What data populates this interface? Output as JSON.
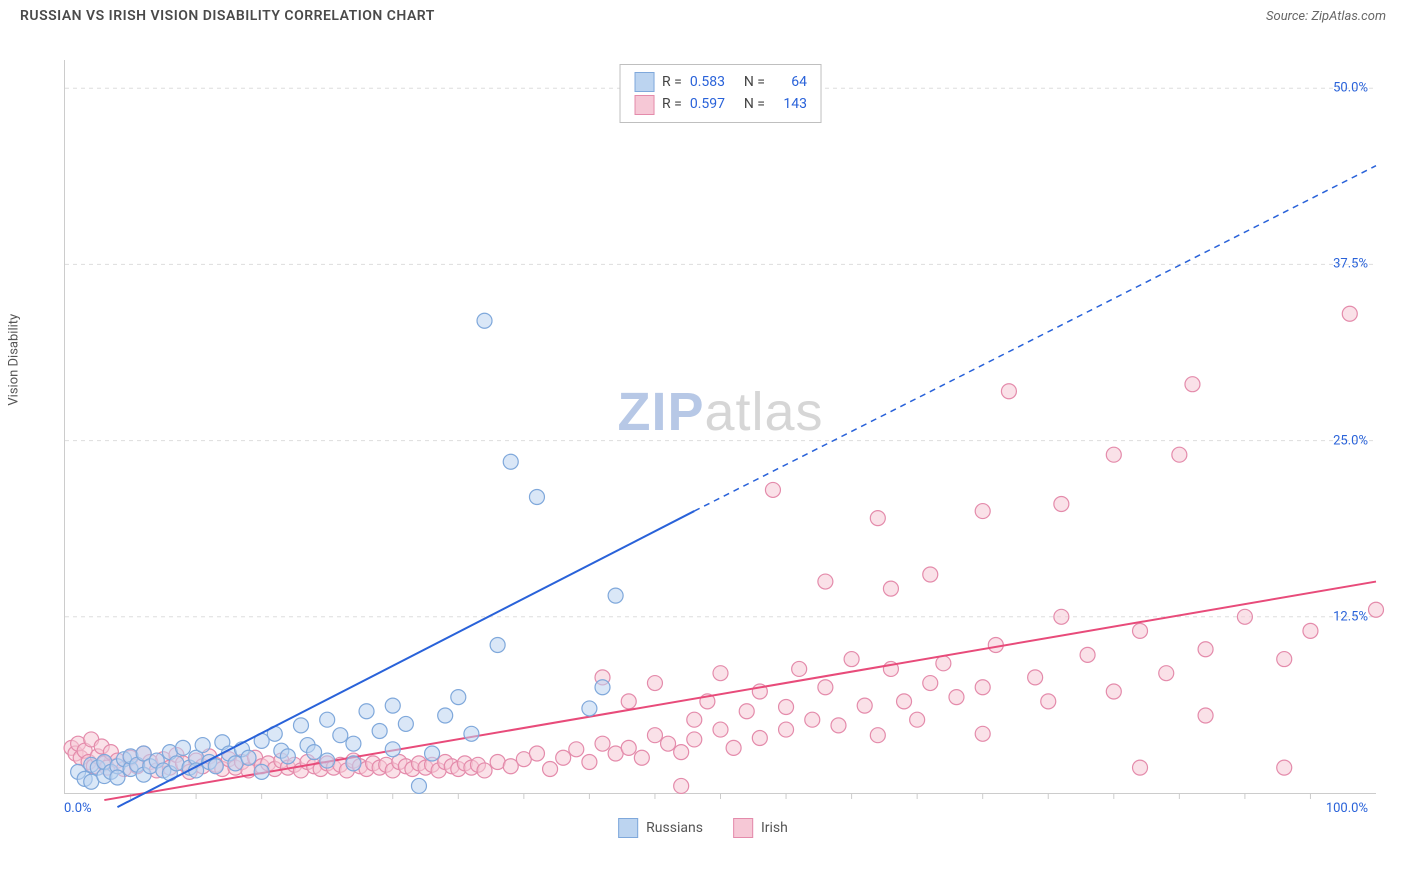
{
  "header": {
    "title": "RUSSIAN VS IRISH VISION DISABILITY CORRELATION CHART",
    "source_prefix": "Source: ",
    "source_name": "ZipAtlas.com"
  },
  "chart": {
    "ylabel": "Vision Disability",
    "xlim": [
      0,
      100
    ],
    "ylim": [
      0,
      52
    ],
    "x_min_label": "0.0%",
    "x_max_label": "100.0%",
    "y_ticks": [
      12.5,
      25.0,
      37.5,
      50.0
    ],
    "y_tick_labels": [
      "12.5%",
      "25.0%",
      "37.5%",
      "50.0%"
    ],
    "y_tick_color": "#2962d9",
    "x_tick_positions": [
      5,
      10,
      15,
      20,
      25,
      30,
      35,
      40,
      45,
      50,
      55,
      60,
      65,
      70,
      75,
      80,
      85,
      90,
      95
    ],
    "grid_color": "#dddddd",
    "axis_color": "#cccccc",
    "background_color": "#ffffff"
  },
  "watermark": {
    "text_bold": "ZIP",
    "text_light": "atlas",
    "color_bold": "#b7c8e6",
    "color_light": "#d6d6d6"
  },
  "legend_box": {
    "rows": [
      {
        "swatch_fill": "#bcd4f0",
        "swatch_stroke": "#7fa8db",
        "r_label": "R =",
        "r_val": "0.583",
        "n_label": "N =",
        "n_val": "64"
      },
      {
        "swatch_fill": "#f6c8d6",
        "swatch_stroke": "#e48bab",
        "r_label": "R =",
        "r_val": "0.597",
        "n_label": "N =",
        "n_val": "143"
      }
    ]
  },
  "bottom_legend": {
    "items": [
      {
        "swatch_fill": "#bcd4f0",
        "swatch_stroke": "#7fa8db",
        "label": "Russians"
      },
      {
        "swatch_fill": "#f6c8d6",
        "swatch_stroke": "#e48bab",
        "label": "Irish"
      }
    ]
  },
  "series": {
    "russians": {
      "type": "scatter",
      "marker_radius": 7.5,
      "marker_fill": "#bcd4f0",
      "marker_fill_opacity": 0.55,
      "marker_stroke": "#7fa8db",
      "marker_stroke_width": 1.2,
      "points": [
        [
          1,
          1.5
        ],
        [
          1.5,
          1
        ],
        [
          2,
          2
        ],
        [
          2,
          0.8
        ],
        [
          2.5,
          1.8
        ],
        [
          3,
          1.2
        ],
        [
          3,
          2.2
        ],
        [
          3.5,
          1.5
        ],
        [
          4,
          1.9
        ],
        [
          4,
          1.1
        ],
        [
          4.5,
          2.4
        ],
        [
          5,
          1.7
        ],
        [
          5,
          2.6
        ],
        [
          5.5,
          2
        ],
        [
          6,
          1.3
        ],
        [
          6,
          2.8
        ],
        [
          6.5,
          1.9
        ],
        [
          7,
          2.3
        ],
        [
          7.5,
          1.6
        ],
        [
          8,
          2.9
        ],
        [
          8,
          1.4
        ],
        [
          8.5,
          2.1
        ],
        [
          9,
          3.2
        ],
        [
          9.5,
          1.8
        ],
        [
          10,
          2.5
        ],
        [
          10,
          1.6
        ],
        [
          10.5,
          3.4
        ],
        [
          11,
          2.2
        ],
        [
          11.5,
          1.9
        ],
        [
          12,
          3.6
        ],
        [
          12.5,
          2.8
        ],
        [
          13,
          2.1
        ],
        [
          13.5,
          3.1
        ],
        [
          14,
          2.5
        ],
        [
          15,
          3.7
        ],
        [
          15,
          1.5
        ],
        [
          16,
          4.2
        ],
        [
          16.5,
          3
        ],
        [
          17,
          2.6
        ],
        [
          18,
          4.8
        ],
        [
          18.5,
          3.4
        ],
        [
          19,
          2.9
        ],
        [
          20,
          5.2
        ],
        [
          20,
          2.3
        ],
        [
          21,
          4.1
        ],
        [
          22,
          3.5
        ],
        [
          22,
          2.1
        ],
        [
          23,
          5.8
        ],
        [
          24,
          4.4
        ],
        [
          25,
          3.1
        ],
        [
          25,
          6.2
        ],
        [
          26,
          4.9
        ],
        [
          27,
          0.5
        ],
        [
          28,
          2.8
        ],
        [
          29,
          5.5
        ],
        [
          30,
          6.8
        ],
        [
          31,
          4.2
        ],
        [
          32,
          33.5
        ],
        [
          33,
          10.5
        ],
        [
          34,
          23.5
        ],
        [
          36,
          21
        ],
        [
          40,
          6
        ],
        [
          41,
          7.5
        ],
        [
          42,
          14
        ]
      ],
      "trend_line": {
        "x1": 4,
        "y1": -1,
        "x2": 48,
        "y2": 20,
        "stroke": "#2962d9",
        "stroke_width": 2,
        "dash_from_x": 48,
        "dash_to_x": 100,
        "dash_y2": 44.5
      }
    },
    "irish": {
      "type": "scatter",
      "marker_radius": 7.5,
      "marker_fill": "#f6c8d6",
      "marker_fill_opacity": 0.55,
      "marker_stroke": "#e48bab",
      "marker_stroke_width": 1.2,
      "points": [
        [
          0.5,
          3.2
        ],
        [
          0.8,
          2.8
        ],
        [
          1,
          3.5
        ],
        [
          1.2,
          2.5
        ],
        [
          1.5,
          3
        ],
        [
          1.8,
          2.2
        ],
        [
          2,
          3.8
        ],
        [
          2.2,
          1.9
        ],
        [
          2.5,
          2.6
        ],
        [
          2.8,
          3.3
        ],
        [
          3,
          2.1
        ],
        [
          3.2,
          1.8
        ],
        [
          3.5,
          2.9
        ],
        [
          4,
          2.3
        ],
        [
          4.5,
          1.7
        ],
        [
          5,
          2.5
        ],
        [
          5.5,
          1.9
        ],
        [
          6,
          2.8
        ],
        [
          6.5,
          2.2
        ],
        [
          7,
          1.6
        ],
        [
          7.5,
          2.4
        ],
        [
          8,
          1.8
        ],
        [
          8.5,
          2.7
        ],
        [
          9,
          2.1
        ],
        [
          9.5,
          1.5
        ],
        [
          10,
          2.3
        ],
        [
          10.5,
          1.9
        ],
        [
          11,
          2.6
        ],
        [
          11.5,
          2
        ],
        [
          12,
          1.7
        ],
        [
          12.5,
          2.4
        ],
        [
          13,
          1.8
        ],
        [
          13.5,
          2.2
        ],
        [
          14,
          1.6
        ],
        [
          14.5,
          2.5
        ],
        [
          15,
          1.9
        ],
        [
          15.5,
          2.1
        ],
        [
          16,
          1.7
        ],
        [
          16.5,
          2.3
        ],
        [
          17,
          1.8
        ],
        [
          17.5,
          2
        ],
        [
          18,
          1.6
        ],
        [
          18.5,
          2.2
        ],
        [
          19,
          1.9
        ],
        [
          19.5,
          1.7
        ],
        [
          20,
          2.1
        ],
        [
          20.5,
          1.8
        ],
        [
          21,
          2
        ],
        [
          21.5,
          1.6
        ],
        [
          22,
          2.3
        ],
        [
          22.5,
          1.9
        ],
        [
          23,
          1.7
        ],
        [
          23.5,
          2.1
        ],
        [
          24,
          1.8
        ],
        [
          24.5,
          2
        ],
        [
          25,
          1.6
        ],
        [
          25.5,
          2.2
        ],
        [
          26,
          1.9
        ],
        [
          26.5,
          1.7
        ],
        [
          27,
          2.1
        ],
        [
          27.5,
          1.8
        ],
        [
          28,
          2
        ],
        [
          28.5,
          1.6
        ],
        [
          29,
          2.2
        ],
        [
          29.5,
          1.9
        ],
        [
          30,
          1.7
        ],
        [
          30.5,
          2.1
        ],
        [
          31,
          1.8
        ],
        [
          31.5,
          2
        ],
        [
          32,
          1.6
        ],
        [
          33,
          2.2
        ],
        [
          34,
          1.9
        ],
        [
          35,
          2.4
        ],
        [
          36,
          2.8
        ],
        [
          37,
          1.7
        ],
        [
          38,
          2.5
        ],
        [
          39,
          3.1
        ],
        [
          40,
          2.2
        ],
        [
          41,
          8.2
        ],
        [
          41,
          3.5
        ],
        [
          42,
          2.8
        ],
        [
          43,
          6.5
        ],
        [
          43,
          3.2
        ],
        [
          44,
          2.5
        ],
        [
          45,
          7.8
        ],
        [
          45,
          4.1
        ],
        [
          46,
          3.5
        ],
        [
          47,
          2.9
        ],
        [
          47,
          0.5
        ],
        [
          48,
          5.2
        ],
        [
          48,
          3.8
        ],
        [
          49,
          6.5
        ],
        [
          50,
          4.5
        ],
        [
          50,
          8.5
        ],
        [
          51,
          3.2
        ],
        [
          52,
          5.8
        ],
        [
          53,
          7.2
        ],
        [
          53,
          3.9
        ],
        [
          54,
          21.5
        ],
        [
          55,
          6.1
        ],
        [
          55,
          4.5
        ],
        [
          56,
          8.8
        ],
        [
          57,
          5.2
        ],
        [
          58,
          15
        ],
        [
          58,
          7.5
        ],
        [
          59,
          4.8
        ],
        [
          60,
          9.5
        ],
        [
          61,
          6.2
        ],
        [
          62,
          19.5
        ],
        [
          62,
          4.1
        ],
        [
          63,
          8.8
        ],
        [
          63,
          14.5
        ],
        [
          64,
          6.5
        ],
        [
          65,
          5.2
        ],
        [
          66,
          7.8
        ],
        [
          66,
          15.5
        ],
        [
          67,
          9.2
        ],
        [
          68,
          6.8
        ],
        [
          70,
          7.5
        ],
        [
          70,
          4.2
        ],
        [
          70,
          20
        ],
        [
          71,
          10.5
        ],
        [
          72,
          28.5
        ],
        [
          74,
          8.2
        ],
        [
          75,
          6.5
        ],
        [
          76,
          12.5
        ],
        [
          76,
          20.5
        ],
        [
          78,
          9.8
        ],
        [
          80,
          24
        ],
        [
          80,
          7.2
        ],
        [
          82,
          1.8
        ],
        [
          82,
          11.5
        ],
        [
          84,
          8.5
        ],
        [
          85,
          24
        ],
        [
          86,
          29
        ],
        [
          87,
          10.2
        ],
        [
          87,
          5.5
        ],
        [
          90,
          12.5
        ],
        [
          93,
          1.8
        ],
        [
          93,
          9.5
        ],
        [
          95,
          11.5
        ],
        [
          98,
          34
        ],
        [
          100,
          13
        ]
      ],
      "trend_line": {
        "x1": 3,
        "y1": -0.5,
        "x2": 100,
        "y2": 15,
        "stroke": "#e84b7a",
        "stroke_width": 2
      }
    }
  }
}
